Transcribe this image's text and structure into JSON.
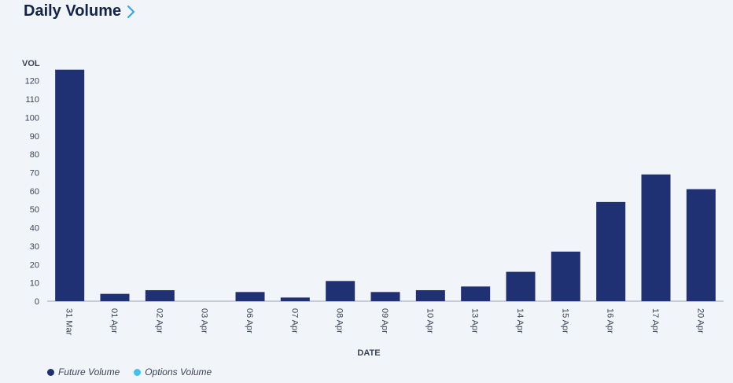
{
  "header": {
    "title": "Daily Volume",
    "chevron_icon": "chevron-right-icon"
  },
  "colors": {
    "future": "#1f3073",
    "options": "#3ec3f0",
    "chevron": "#3ea6df",
    "axis_line": "#9aa3b2"
  },
  "chart_data": {
    "type": "bar",
    "title": "Daily Volume",
    "xlabel": "DATE",
    "ylabel": "VOL",
    "ylim": [
      0,
      125
    ],
    "yticks": [
      0,
      10,
      20,
      30,
      40,
      50,
      60,
      70,
      80,
      90,
      100,
      110,
      120
    ],
    "categories": [
      "31 Mar",
      "01 Apr",
      "02 Apr",
      "03 Apr",
      "06 Apr",
      "07 Apr",
      "08 Apr",
      "09 Apr",
      "10 Apr",
      "13 Apr",
      "14 Apr",
      "15 Apr",
      "16 Apr",
      "17 Apr",
      "20 Apr"
    ],
    "series": [
      {
        "name": "Future Volume",
        "values": [
          126,
          4,
          6,
          0,
          5,
          2,
          11,
          5,
          6,
          8,
          16,
          27,
          54,
          69,
          61
        ]
      },
      {
        "name": "Options Volume",
        "values": [
          0,
          0,
          0,
          0,
          0,
          0,
          0,
          0,
          0,
          0,
          0,
          0,
          0,
          0,
          0
        ]
      }
    ],
    "legend_position": "bottom-left",
    "grid": false
  },
  "legend": [
    {
      "label": "Future Volume",
      "color": "#1f3073"
    },
    {
      "label": "Options Volume",
      "color": "#3ec3f0"
    }
  ]
}
